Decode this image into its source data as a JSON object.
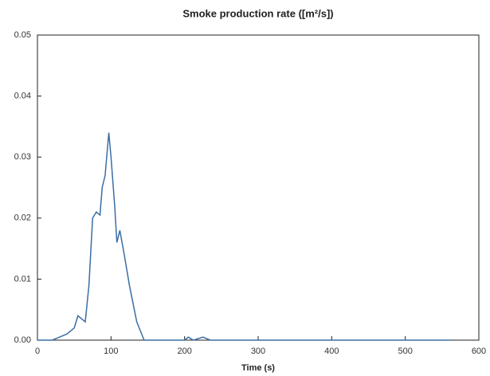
{
  "chart_data": {
    "type": "line",
    "title": "Smoke production rate ([m²/s])",
    "x_label": "Time (s)",
    "x": [
      0,
      20,
      30,
      40,
      50,
      55,
      60,
      65,
      70,
      75,
      80,
      85,
      88,
      92,
      97,
      100,
      105,
      108,
      112,
      118,
      125,
      130,
      135,
      140,
      145,
      160,
      200,
      205,
      212,
      225,
      235,
      300,
      560
    ],
    "series": [
      {
        "name": "Smoke production rate",
        "color": "#3a6ea5",
        "values": [
          0,
          0,
          0.0005,
          0.001,
          0.002,
          0.004,
          0.0035,
          0.003,
          0.009,
          0.02,
          0.021,
          0.0205,
          0.025,
          0.027,
          0.034,
          0.03,
          0.022,
          0.016,
          0.018,
          0.014,
          0.009,
          0.006,
          0.003,
          0.0015,
          0,
          0,
          0,
          0.0005,
          0,
          0.0005,
          0,
          0,
          0
        ]
      }
    ],
    "xlim": [
      0,
      600
    ],
    "xticks": [
      0,
      100,
      200,
      300,
      400,
      500,
      600
    ],
    "ylim": [
      0,
      0.05
    ],
    "yticks": [
      {
        "value": 0,
        "label": "0.00"
      },
      0.01,
      0.02,
      0.03,
      0.04,
      0.05
    ]
  }
}
